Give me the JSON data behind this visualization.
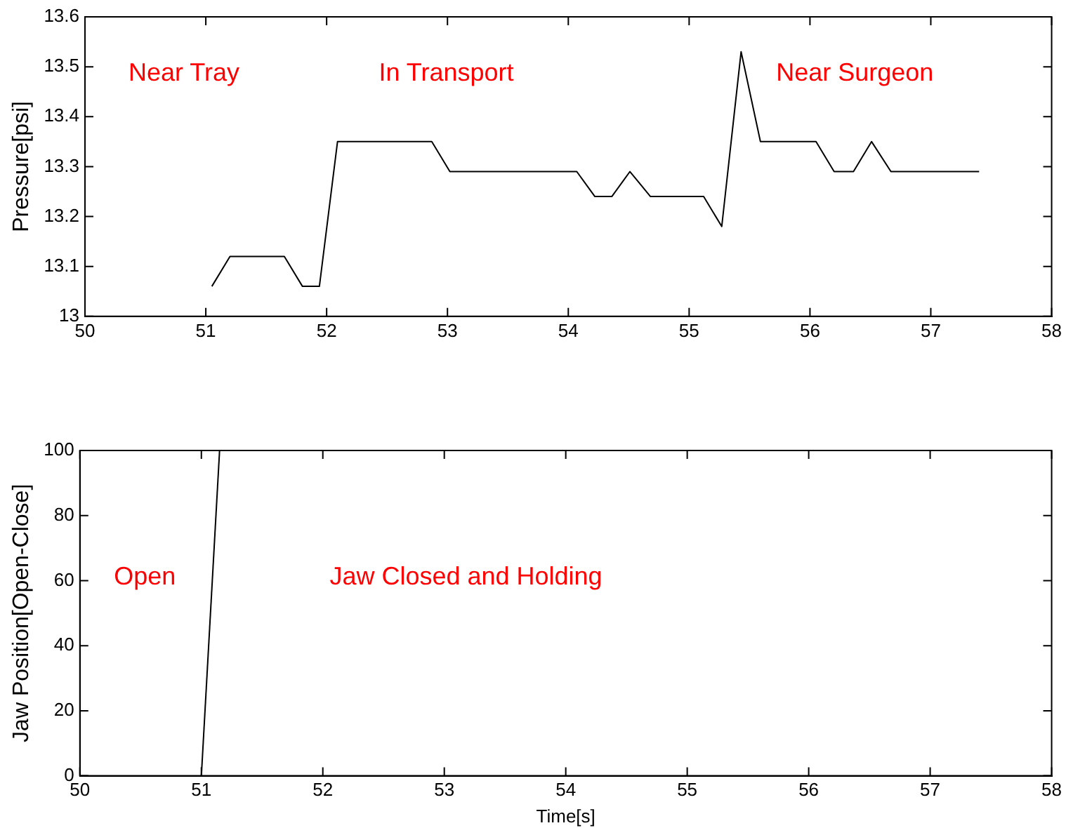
{
  "chart_data": [
    {
      "type": "line",
      "ylabel": "Pressure[psi]",
      "color": "#000000",
      "marker": "none",
      "x": [
        51.05,
        51.2,
        51.65,
        51.8,
        51.94,
        52.09,
        52.87,
        53.02,
        54.07,
        54.22,
        54.36,
        54.51,
        54.68,
        55.12,
        55.27,
        55.43,
        55.59,
        56.05,
        56.2,
        56.36,
        56.51,
        56.67,
        57.4
      ],
      "values": [
        13.06,
        13.12,
        13.12,
        13.06,
        13.06,
        13.35,
        13.35,
        13.29,
        13.29,
        13.24,
        13.24,
        13.29,
        13.24,
        13.24,
        13.18,
        13.53,
        13.35,
        13.35,
        13.29,
        13.29,
        13.35,
        13.29,
        13.29
      ],
      "xlim": [
        50,
        58
      ],
      "xticks": [
        50,
        51,
        52,
        53,
        54,
        55,
        56,
        57,
        58
      ],
      "ylim": [
        13,
        13.6
      ],
      "yticks": [
        13,
        13.1,
        13.2,
        13.3,
        13.4,
        13.5,
        13.6
      ],
      "annotations": [
        "Near Tray",
        "In Transport",
        "Near Surgeon"
      ]
    },
    {
      "type": "line",
      "xlabel": "Time[s]",
      "ylabel": "Jaw Position[Open-Close]",
      "color": "#000000",
      "marker": "none",
      "x": [
        51.0,
        51.15
      ],
      "values": [
        0,
        100
      ],
      "xlim": [
        50,
        58
      ],
      "xticks": [
        50,
        51,
        52,
        53,
        54,
        55,
        56,
        57,
        58
      ],
      "ylim": [
        0,
        100
      ],
      "yticks": [
        0,
        20,
        40,
        60,
        80,
        100
      ],
      "annotations": [
        "Open",
        "Jaw Closed and Holding"
      ]
    }
  ]
}
